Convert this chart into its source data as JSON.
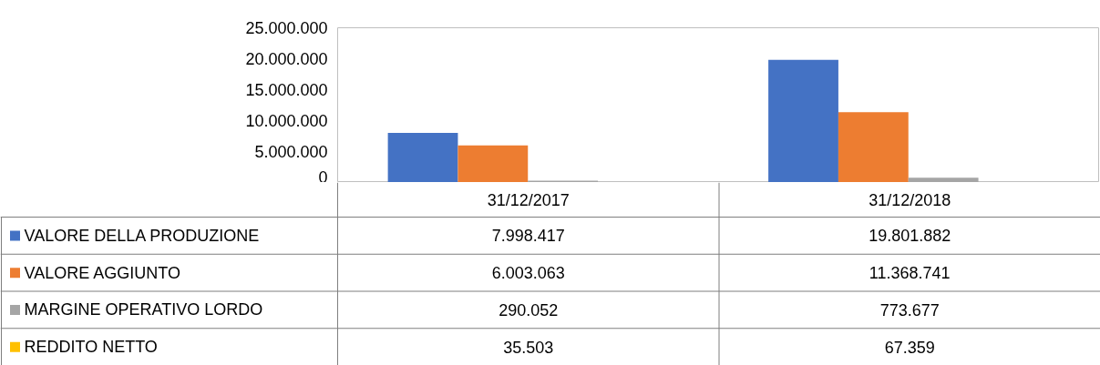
{
  "chart_data": {
    "type": "bar",
    "categories": [
      "31/12/2017",
      "31/12/2018"
    ],
    "series": [
      {
        "name": "VALORE DELLA PRODUZIONE",
        "color": "#4472c4",
        "values": [
          7998417,
          19801882
        ],
        "value_labels": [
          "7.998.417",
          "19.801.882"
        ]
      },
      {
        "name": "VALORE AGGIUNTO",
        "color": "#ed7d31",
        "values": [
          6003063,
          11368741
        ],
        "value_labels": [
          "6.003.063",
          "11.368.741"
        ]
      },
      {
        "name": "MARGINE OPERATIVO LORDO",
        "color": "#a5a5a5",
        "values": [
          290052,
          773677
        ],
        "value_labels": [
          "290.052",
          "773.677"
        ]
      },
      {
        "name": "REDDITO NETTO",
        "color": "#ffc000",
        "values": [
          35503,
          67359
        ],
        "value_labels": [
          "35.503",
          "67.359"
        ]
      }
    ],
    "ylim": [
      0,
      25000000
    ],
    "yticks": [
      {
        "value": 0,
        "label": "0"
      },
      {
        "value": 5000000,
        "label": "5.000.000"
      },
      {
        "value": 10000000,
        "label": "10.000.000"
      },
      {
        "value": 15000000,
        "label": "15.000.000"
      },
      {
        "value": 20000000,
        "label": "20.000.000"
      },
      {
        "value": 25000000,
        "label": "25.000.000"
      }
    ],
    "grid": false,
    "legend": "bottom"
  }
}
